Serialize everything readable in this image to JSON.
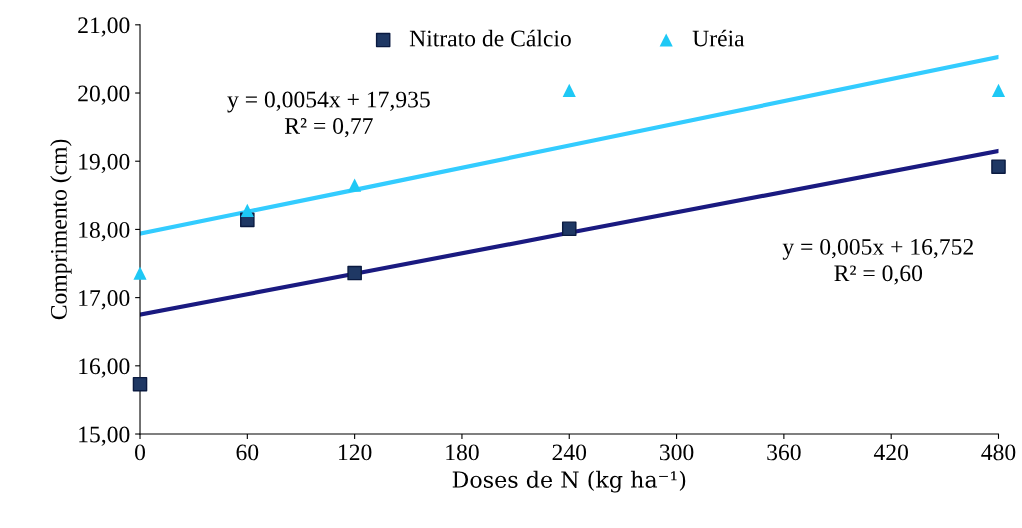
{
  "chart_data": {
    "type": "scatter",
    "xlabel": "Doses de N (kg ha⁻¹)",
    "ylabel": "Comprimento (cm)",
    "x": [
      0,
      60,
      120,
      240,
      480
    ],
    "series": [
      {
        "name": "Nitrato de Cálcio",
        "color": "#1f3864",
        "marker": "square",
        "values": [
          15.73,
          18.14,
          17.36,
          18.01,
          18.92
        ]
      },
      {
        "name": "Uréia",
        "color": "#1ec8f5",
        "marker": "triangle",
        "values": [
          17.36,
          18.28,
          18.65,
          20.04,
          20.04
        ]
      },
      {
        "type": "line",
        "color": "#1a1a80",
        "values": [
          16.75,
          17.05,
          17.35,
          17.95,
          19.15
        ]
      },
      {
        "type": "line",
        "color": "#33ccff",
        "values": [
          17.94,
          18.26,
          18.58,
          19.23,
          20.53
        ]
      }
    ],
    "annotations": [
      "y = 0,0054x + 17,935\nR² = 0,77",
      "y = 0,005x + 16,752\nR² = 0,60"
    ],
    "xlim": [
      0,
      480
    ],
    "xticks": [
      0,
      60,
      120,
      180,
      240,
      300,
      360,
      420,
      480
    ],
    "ylim": [
      15,
      21
    ],
    "yticks": [
      {
        "value": 15,
        "label": "15,00"
      },
      {
        "value": 16,
        "label": "16,00"
      },
      {
        "value": 17,
        "label": "17,00"
      },
      {
        "value": 18,
        "label": "18,00"
      },
      {
        "value": 19,
        "label": "19,00"
      },
      {
        "value": 20,
        "label": "20,00"
      },
      {
        "value": 21,
        "label": "21,00"
      }
    ],
    "legend": "top",
    "grid": false
  }
}
